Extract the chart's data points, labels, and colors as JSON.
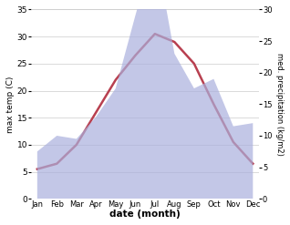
{
  "months": [
    "Jan",
    "Feb",
    "Mar",
    "Apr",
    "May",
    "Jun",
    "Jul",
    "Aug",
    "Sep",
    "Oct",
    "Nov",
    "Dec"
  ],
  "temp": [
    5.5,
    6.5,
    10.0,
    16.0,
    22.0,
    26.5,
    30.5,
    29.0,
    25.0,
    17.5,
    10.5,
    6.5
  ],
  "precip": [
    7.5,
    10.0,
    9.5,
    13.0,
    17.5,
    29.0,
    40.0,
    23.0,
    17.5,
    19.0,
    11.5,
    12.0
  ],
  "temp_color": "#b84050",
  "precip_fill_color": "#aab0dd",
  "temp_ylim": [
    0,
    35
  ],
  "precip_ylim": [
    0,
    30
  ],
  "temp_ylabel": "max temp (C)",
  "precip_ylabel": "med. precipitation (kg/m2)",
  "xlabel": "date (month)",
  "temp_yticks": [
    5,
    10,
    15,
    20,
    25,
    30,
    35
  ],
  "precip_yticks": [
    0,
    5,
    10,
    15,
    20,
    25,
    30
  ],
  "bg_color": "#ffffff"
}
